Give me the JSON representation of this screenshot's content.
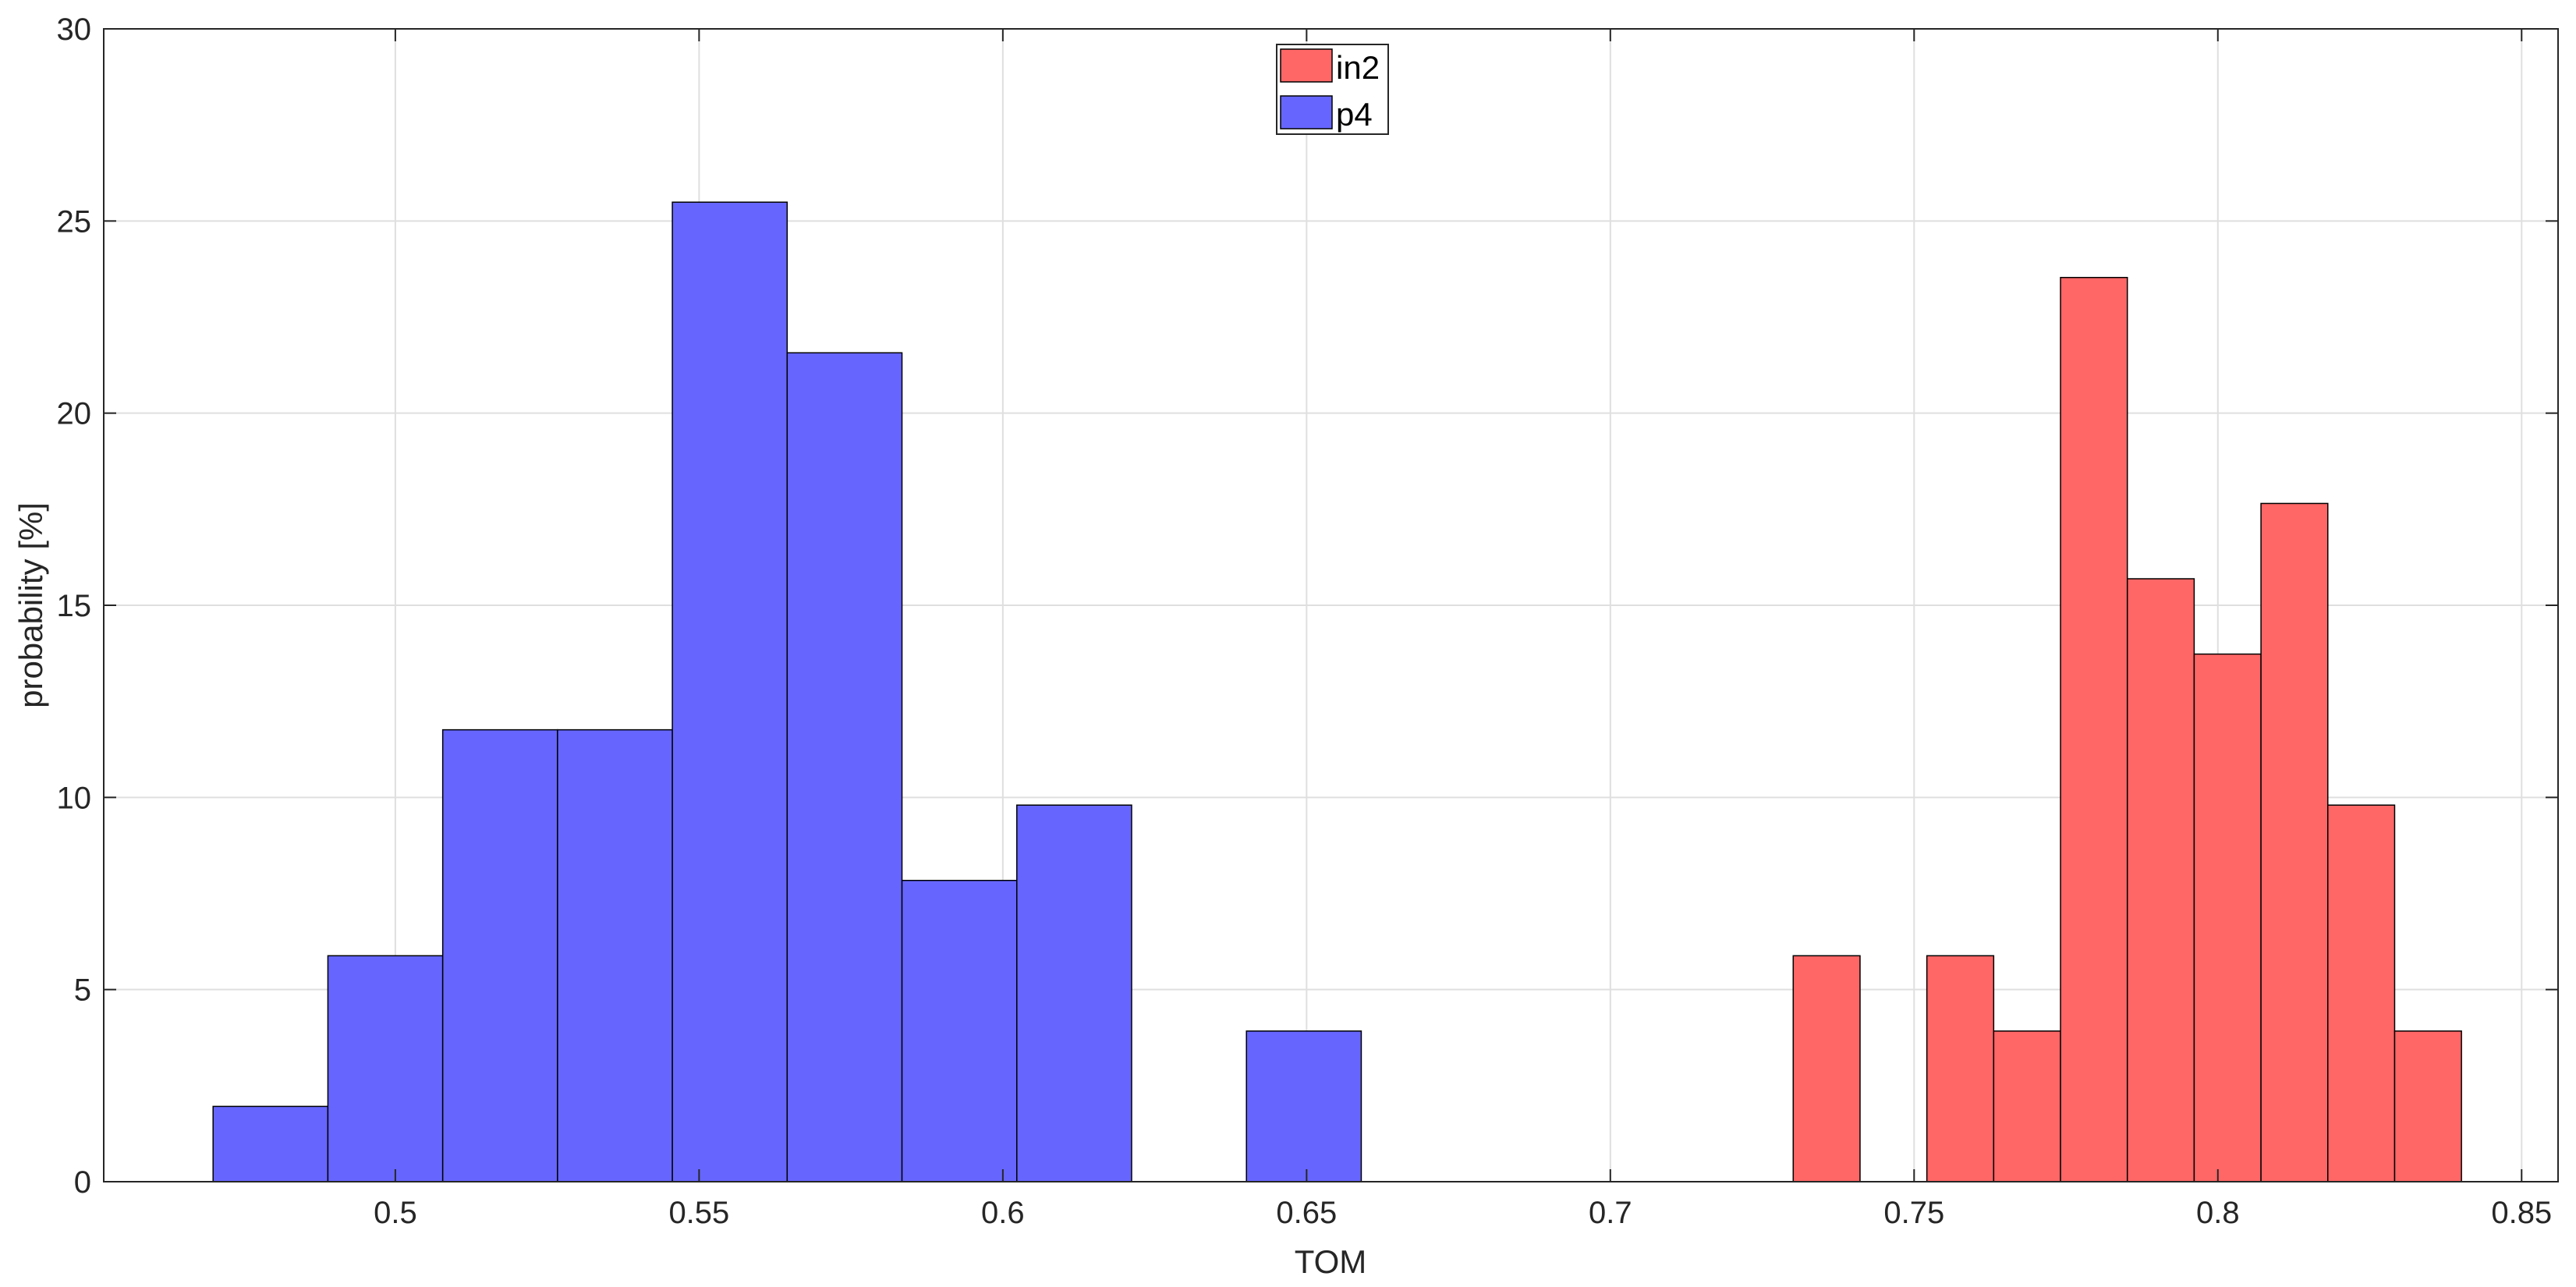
{
  "chart_data": {
    "type": "bar",
    "xlabel": "TOM",
    "ylabel": "probability [%]",
    "xlim": [
      0.452,
      0.856
    ],
    "ylim": [
      0,
      30
    ],
    "xticks": [
      0.5,
      0.55,
      0.6,
      0.65,
      0.7,
      0.75,
      0.8,
      0.85
    ],
    "xtick_labels": [
      "0.5",
      "0.55",
      "0.6",
      "0.65",
      "0.7",
      "0.75",
      "0.8",
      "0.85"
    ],
    "yticks": [
      0,
      5,
      10,
      15,
      20,
      25,
      30
    ],
    "ytick_labels": [
      "0",
      "5",
      "10",
      "15",
      "20",
      "25",
      "30"
    ],
    "grid": true,
    "legend_position": "top-center",
    "series": [
      {
        "name": "in2",
        "color": "#ff6666",
        "bin_edges": [
          0.7301,
          0.7411,
          0.7521,
          0.7631,
          0.7741,
          0.7851,
          0.7961,
          0.8071,
          0.8181,
          0.8291,
          0.8401
        ],
        "values": [
          5.88,
          0,
          5.88,
          3.92,
          23.53,
          15.69,
          13.73,
          17.65,
          9.8,
          3.92
        ]
      },
      {
        "name": "p4",
        "color": "#6666ff",
        "bin_edges": [
          0.47,
          0.4889,
          0.5078,
          0.5267,
          0.5456,
          0.5645,
          0.5834,
          0.6023,
          0.6212,
          0.6401,
          0.659
        ],
        "values": [
          1.96,
          5.88,
          11.76,
          11.76,
          25.49,
          21.57,
          7.84,
          9.8,
          0,
          3.92
        ]
      }
    ]
  }
}
